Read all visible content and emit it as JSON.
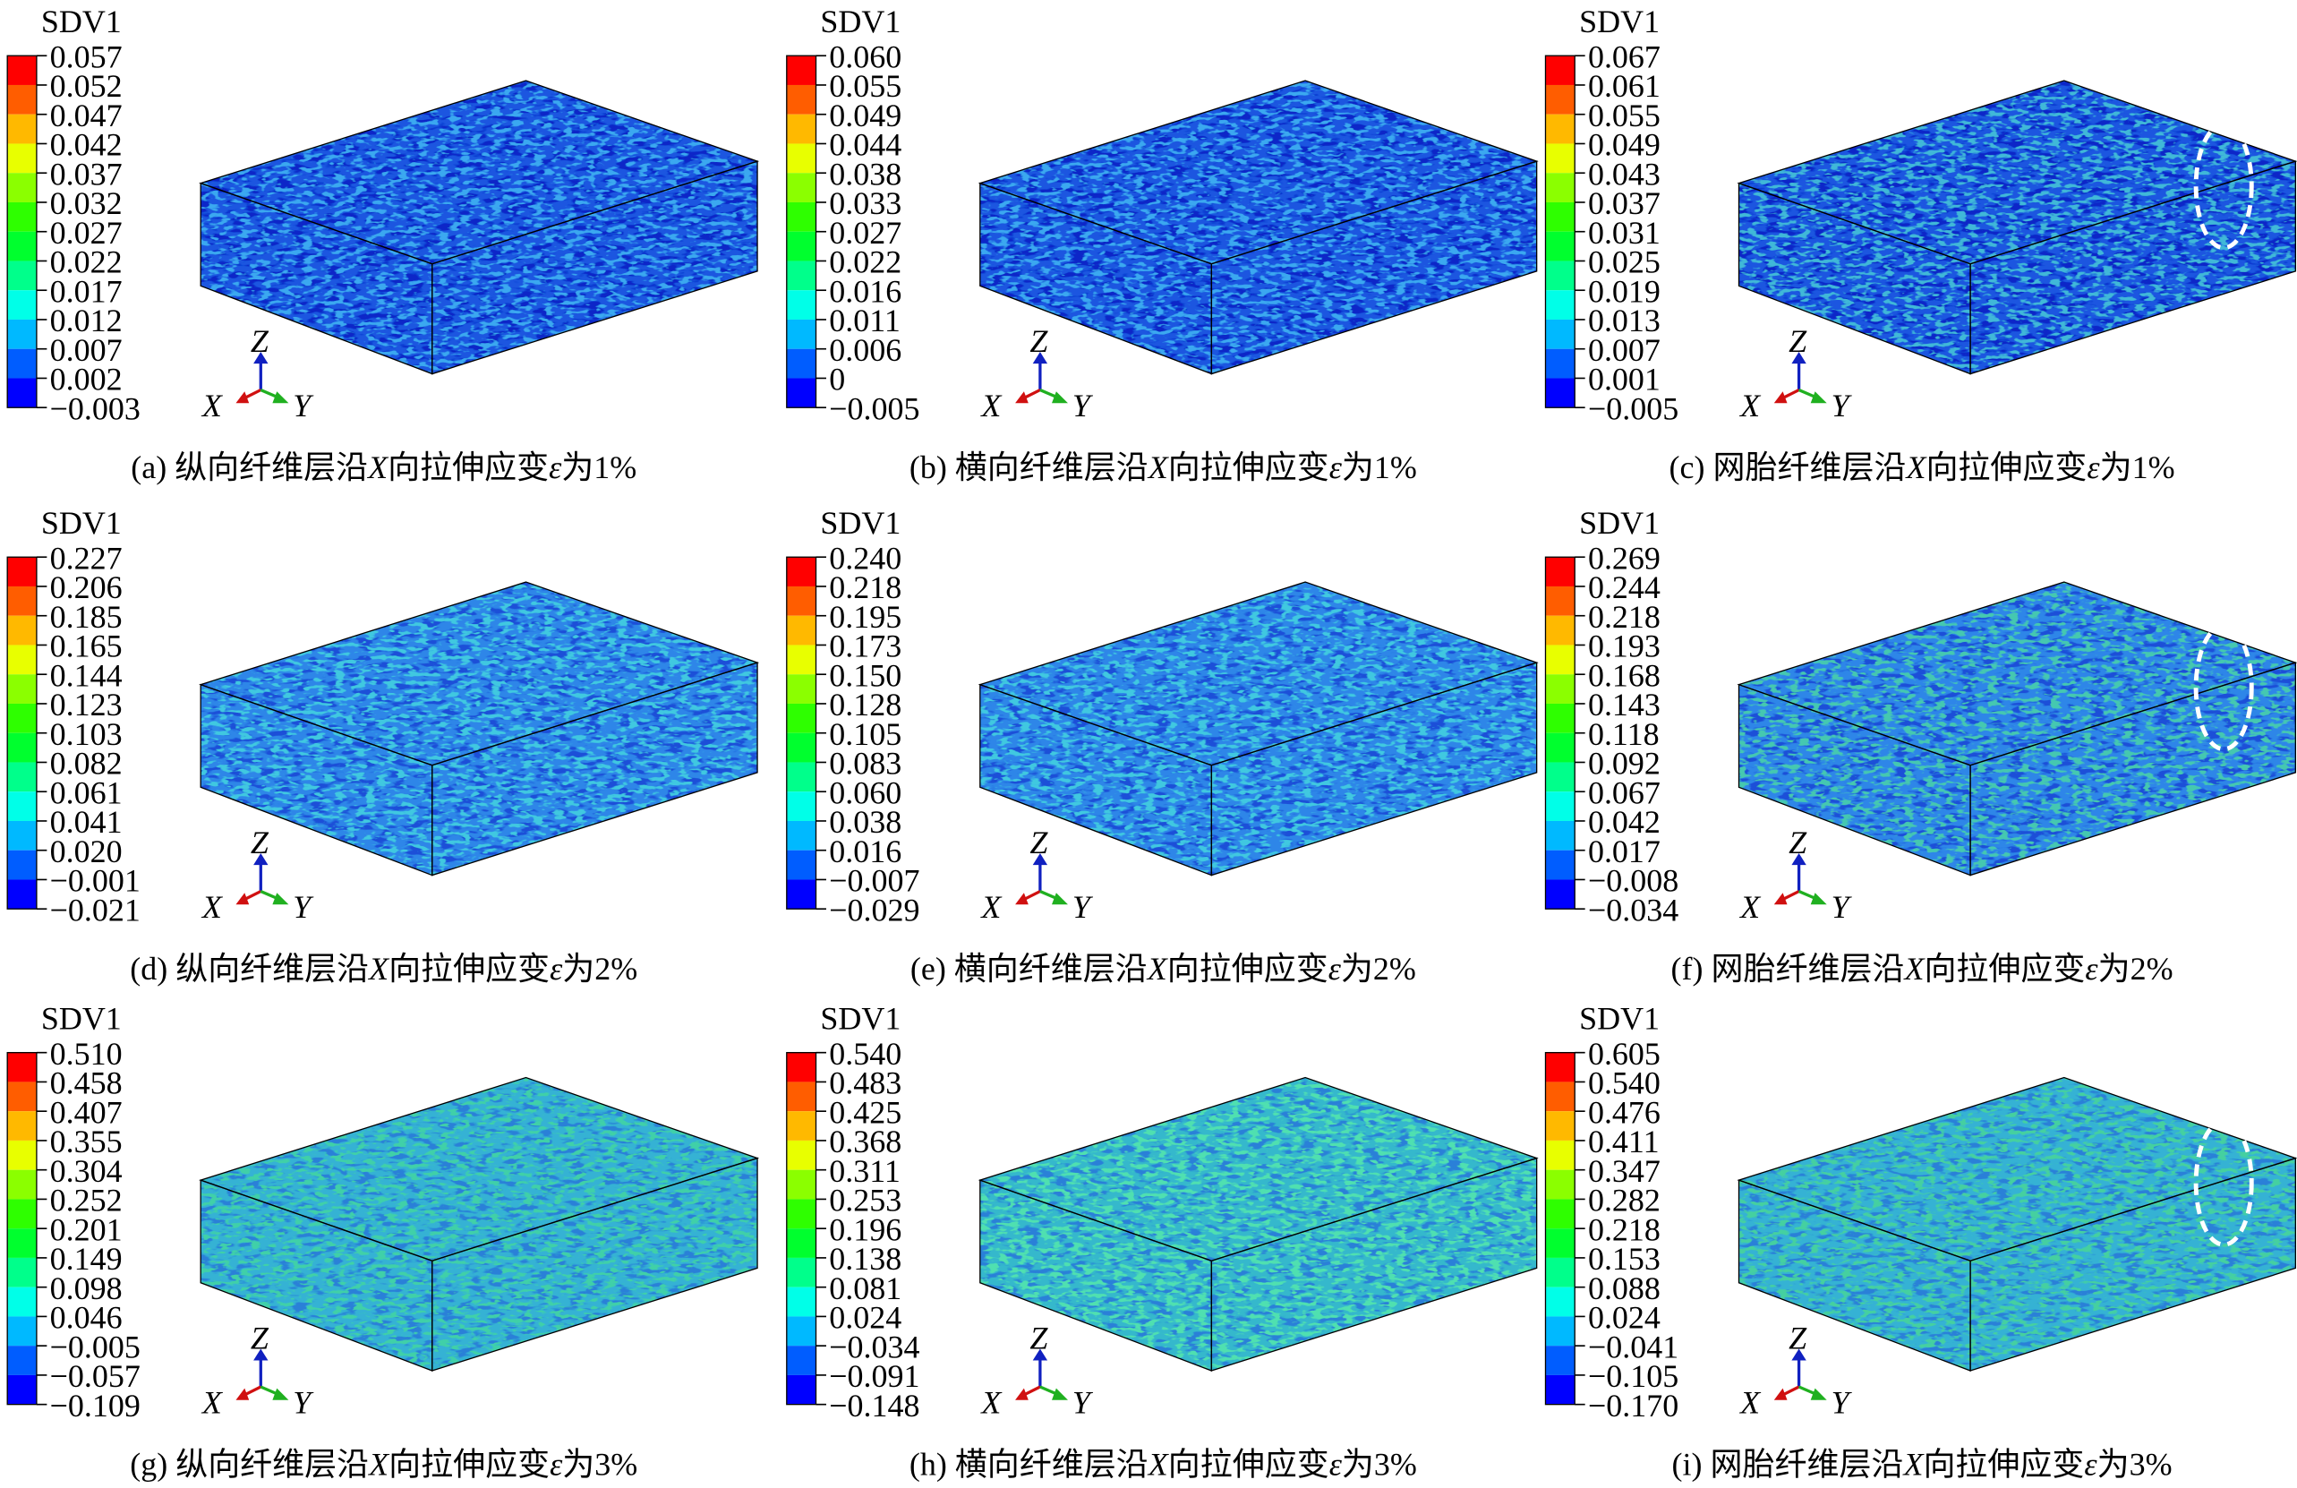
{
  "figure": {
    "legend_colors": [
      "#ff0000",
      "#ff5d00",
      "#ffb900",
      "#e8ff00",
      "#8bff00",
      "#2eff00",
      "#00ff2e",
      "#00ff8b",
      "#00ffe8",
      "#00b9ff",
      "#005dff",
      "#0000ff"
    ],
    "triad": {
      "x": "X",
      "y": "Y",
      "z": "Z"
    },
    "panels": [
      {
        "legend_title": "SDV1",
        "labels": [
          "0.057",
          "0.052",
          "0.047",
          "0.042",
          "0.037",
          "0.032",
          "0.027",
          "0.022",
          "0.017",
          "0.012",
          "0.007",
          "0.002",
          "−0.003"
        ],
        "surface_color": "#1d56e0",
        "spot_colors": [
          "#0a25c8",
          "#3aa8f0"
        ],
        "highlight": false,
        "caption": {
          "before": "(a) 纵向纤维层沿",
          "axis": "X",
          "middle": "向拉伸应变",
          "symbol": "ε",
          "after": "为1%"
        }
      },
      {
        "legend_title": "SDV1",
        "labels": [
          "0.060",
          "0.055",
          "0.049",
          "0.044",
          "0.038",
          "0.033",
          "0.027",
          "0.022",
          "0.016",
          "0.011",
          "0.006",
          "0",
          "−0.005"
        ],
        "surface_color": "#1d56e0",
        "spot_colors": [
          "#0a25c8",
          "#3aa8f0"
        ],
        "highlight": false,
        "caption": {
          "before": "(b) 横向纤维层沿",
          "axis": "X",
          "middle": "向拉伸应变",
          "symbol": "ε",
          "after": "为1%"
        }
      },
      {
        "legend_title": "SDV1",
        "labels": [
          "0.067",
          "0.061",
          "0.055",
          "0.049",
          "0.043",
          "0.037",
          "0.031",
          "0.025",
          "0.019",
          "0.013",
          "0.007",
          "0.001",
          "−0.005"
        ],
        "surface_color": "#1d56e0",
        "spot_colors": [
          "#0a25c8",
          "#3fb8d8"
        ],
        "highlight": true,
        "caption": {
          "before": "(c) 网胎纤维层沿",
          "axis": "X",
          "middle": "向拉伸应变",
          "symbol": "ε",
          "after": "为1%"
        }
      },
      {
        "legend_title": "SDV1",
        "labels": [
          "0.227",
          "0.206",
          "0.185",
          "0.165",
          "0.144",
          "0.123",
          "0.103",
          "0.082",
          "0.061",
          "0.041",
          "0.020",
          "−0.001",
          "−0.021"
        ],
        "surface_color": "#2f86e8",
        "spot_colors": [
          "#1d4fd8",
          "#40c8e0"
        ],
        "highlight": false,
        "caption": {
          "before": "(d) 纵向纤维层沿",
          "axis": "X",
          "middle": "向拉伸应变",
          "symbol": "ε",
          "after": "为2%"
        }
      },
      {
        "legend_title": "SDV1",
        "labels": [
          "0.240",
          "0.218",
          "0.195",
          "0.173",
          "0.150",
          "0.128",
          "0.105",
          "0.083",
          "0.060",
          "0.038",
          "0.016",
          "−0.007",
          "−0.029"
        ],
        "surface_color": "#2f86e8",
        "spot_colors": [
          "#1d4fd8",
          "#40c8e0"
        ],
        "highlight": false,
        "caption": {
          "before": "(e) 横向纤维层沿",
          "axis": "X",
          "middle": "向拉伸应变",
          "symbol": "ε",
          "after": "为2%"
        }
      },
      {
        "legend_title": "SDV1",
        "labels": [
          "0.269",
          "0.244",
          "0.218",
          "0.193",
          "0.168",
          "0.143",
          "0.118",
          "0.092",
          "0.067",
          "0.042",
          "0.017",
          "−0.008",
          "−0.034"
        ],
        "surface_color": "#2f86e8",
        "spot_colors": [
          "#1d4fd8",
          "#45c8b0"
        ],
        "highlight": true,
        "caption": {
          "before": "(f) 网胎纤维层沿",
          "axis": "X",
          "middle": "向拉伸应变",
          "symbol": "ε",
          "after": "为2%"
        }
      },
      {
        "legend_title": "SDV1",
        "labels": [
          "0.510",
          "0.458",
          "0.407",
          "0.355",
          "0.304",
          "0.252",
          "0.201",
          "0.149",
          "0.098",
          "0.046",
          "−0.005",
          "−0.057",
          "−0.109"
        ],
        "surface_color": "#34b2d4",
        "spot_colors": [
          "#2a80d8",
          "#3fd0a8"
        ],
        "highlight": false,
        "caption": {
          "before": "(g) 纵向纤维层沿",
          "axis": "X",
          "middle": "向拉伸应变",
          "symbol": "ε",
          "after": "为3%"
        }
      },
      {
        "legend_title": "SDV1",
        "labels": [
          "0.540",
          "0.483",
          "0.425",
          "0.368",
          "0.311",
          "0.253",
          "0.196",
          "0.138",
          "0.081",
          "0.024",
          "−0.034",
          "−0.091",
          "−0.148"
        ],
        "surface_color": "#34b8cc",
        "spot_colors": [
          "#2a80d8",
          "#50e0b0"
        ],
        "highlight": false,
        "caption": {
          "before": "(h) 横向纤维层沿",
          "axis": "X",
          "middle": "向拉伸应变",
          "symbol": "ε",
          "after": "为3%"
        }
      },
      {
        "legend_title": "SDV1",
        "labels": [
          "0.605",
          "0.540",
          "0.476",
          "0.411",
          "0.347",
          "0.282",
          "0.218",
          "0.153",
          "0.088",
          "0.024",
          "−0.041",
          "−0.105",
          "−0.170"
        ],
        "surface_color": "#34b2d4",
        "spot_colors": [
          "#2a80d8",
          "#45d0a0"
        ],
        "highlight": true,
        "caption": {
          "before": "(i) 网胎纤维层沿",
          "axis": "X",
          "middle": "向拉伸应变",
          "symbol": "ε",
          "after": "为3%"
        }
      }
    ]
  }
}
